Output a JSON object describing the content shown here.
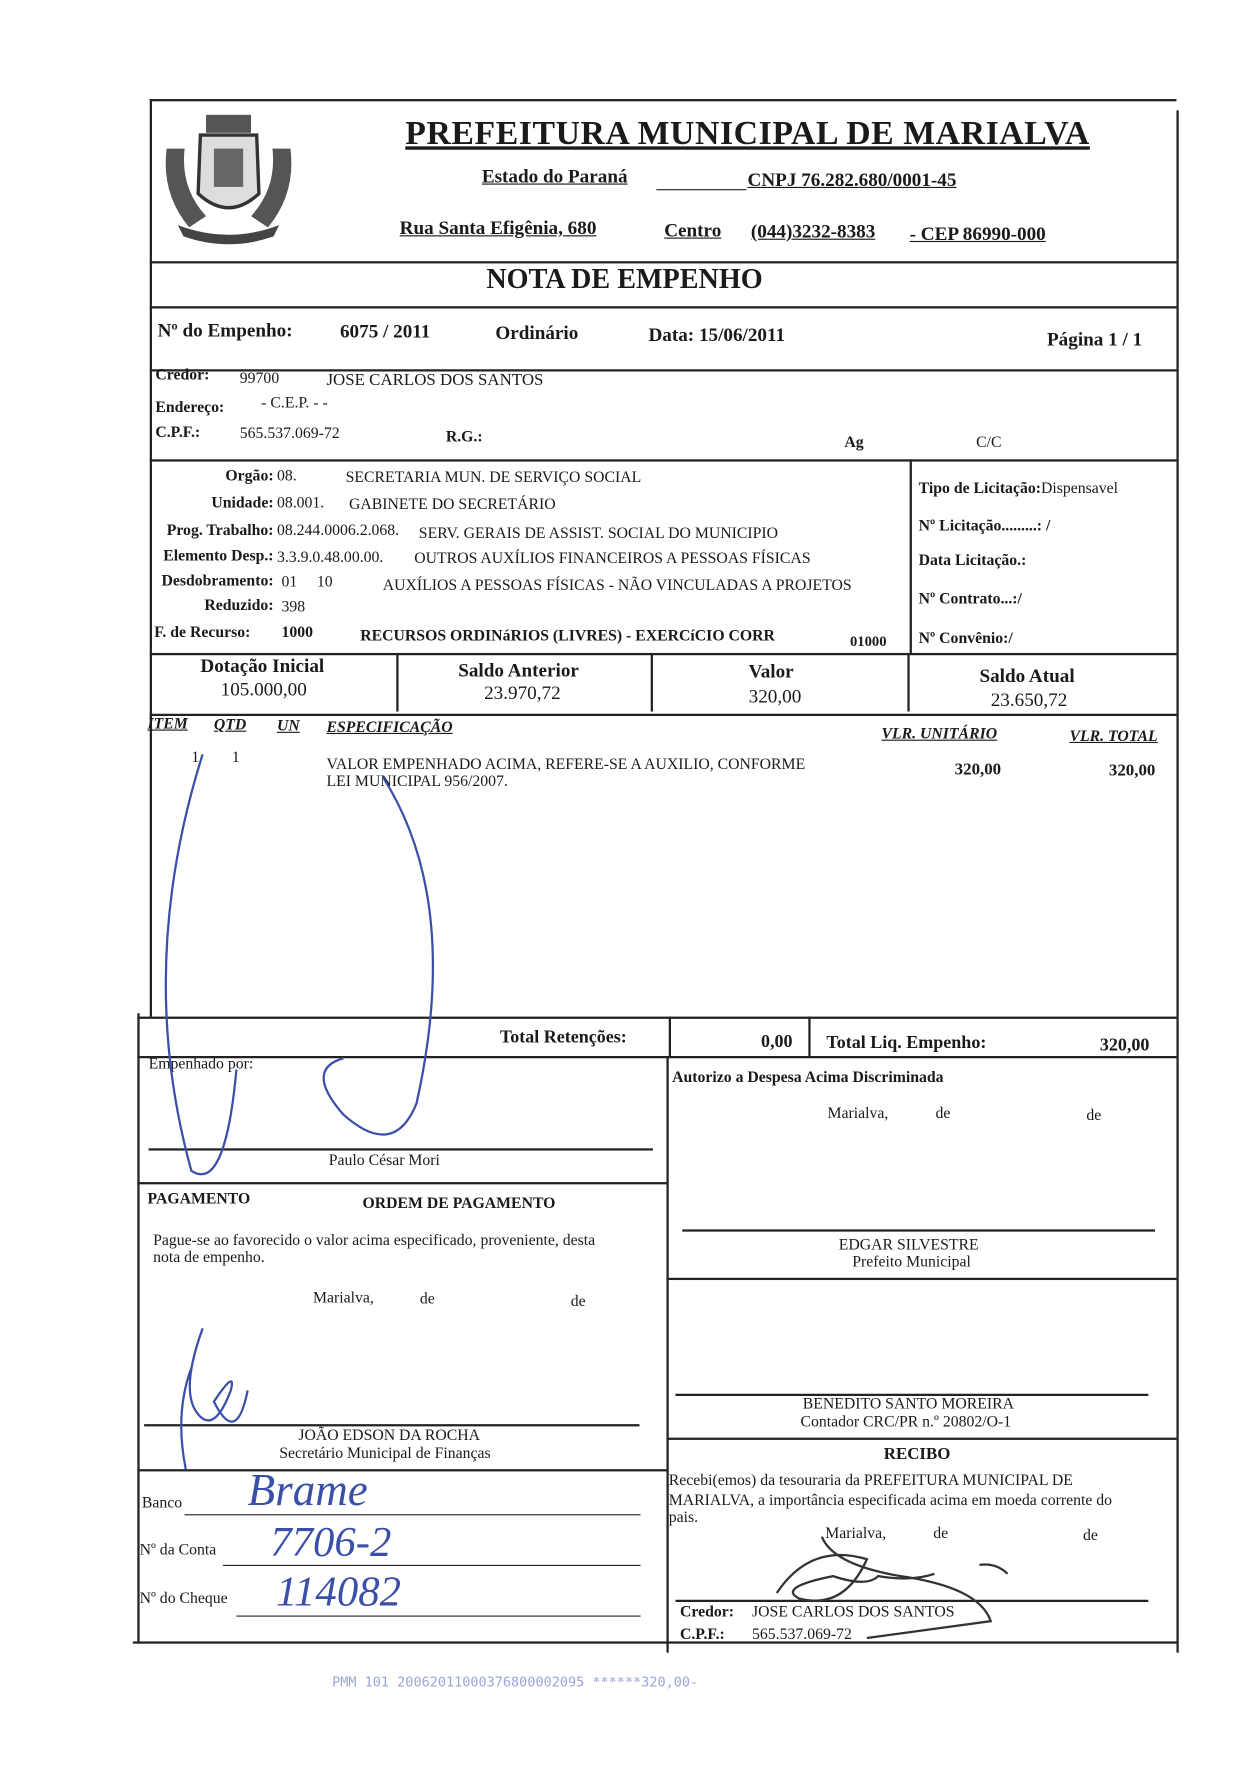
{
  "header": {
    "title": "PREFEITURA MUNICIPAL DE MARIALVA",
    "state": "Estado do Paraná",
    "cnpj": "CNPJ 76.282.680/0001-45",
    "address": "Rua Santa Efigênia, 680",
    "district": "Centro",
    "phone": "(044)3232-8383",
    "cep": "-  CEP 86990-000",
    "coat_of_arms": "MARIALVA"
  },
  "doc_title": "NOTA  DE  EMPENHO",
  "empenho": {
    "label": "Nº do Empenho:",
    "number": "6075 / 2011",
    "type": "Ordinário",
    "date": "Data: 15/06/2011",
    "page": "Página   1 / 1"
  },
  "credor": {
    "label": "Credor:",
    "code": "99700",
    "name": "JOSE CARLOS DOS SANTOS",
    "address_label": "Endereço:",
    "address": "- C.E.P.  -  -",
    "cpf_label": "C.P.F.:",
    "cpf": "565.537.069-72",
    "rg_label": "R.G.:",
    "ag_label": "Ag",
    "cc_label": "C/C"
  },
  "classification": [
    {
      "label": "Orgão:",
      "code": "08.",
      "desc": "SECRETARIA MUN. DE SERVIÇO SOCIAL"
    },
    {
      "label": "Unidade:",
      "code": "08.001.",
      "desc": "GABINETE DO SECRETÁRIO"
    },
    {
      "label": "Prog. Trabalho:",
      "code": "08.244.0006.2.068.",
      "desc": "SERV. GERAIS DE ASSIST. SOCIAL DO MUNICIPIO"
    },
    {
      "label": "Elemento Desp.:",
      "code": "3.3.9.0.48.00.00.",
      "desc": "OUTROS AUXÍLIOS FINANCEIROS A PESSOAS FÍSICAS"
    },
    {
      "label": "Desdobramento:",
      "code": "01     10",
      "desc": "AUXÍLIOS A PESSOAS FÍSICAS - NÃO VINCULADAS A PROJETOS"
    },
    {
      "label": "Reduzido:",
      "code": "398",
      "desc": ""
    },
    {
      "label": "F. de Recurso:",
      "code": "1000",
      "desc": "RECURSOS ORDINáRIOS (LIVRES) - EXERCíCIO CORR",
      "extra": "01000"
    }
  ],
  "licitacao": {
    "tipo_label": "Tipo de Licitação:",
    "tipo": "Dispensavel",
    "numero": "Nº Licitação.........: /",
    "data": "Data Licitação.:",
    "contrato": "Nº Contrato...:/",
    "convenio": "Nº Convênio:/"
  },
  "balances": [
    {
      "label": "Dotação Inicial",
      "value": "105.000,00"
    },
    {
      "label": "Saldo Anterior",
      "value": "23.970,72"
    },
    {
      "label": "Valor",
      "value": "320,00"
    },
    {
      "label": "Saldo Atual",
      "value": "23.650,72"
    }
  ],
  "items_header": {
    "item": "ITEM",
    "qtd": "QTD",
    "un": "UN",
    "spec": "ESPECIFICAÇÃO",
    "unit": "VLR. UNITÁRIO",
    "total": "VLR. TOTAL"
  },
  "items": [
    {
      "item": "1",
      "qtd": "1",
      "spec": "VALOR EMPENHADO ACIMA, REFERE-SE A AUXILIO, CONFORME",
      "spec2": "LEI MUNICIPAL 956/2007.",
      "unit": "320,00",
      "total": "320,00"
    }
  ],
  "totals": {
    "retencoes_label": "Total Retenções:",
    "retencoes": "0,00",
    "liq_label": "Total Liq. Empenho:",
    "liq": "320,00"
  },
  "empenhado": {
    "label": "Empenhado por:",
    "name": "Paulo César Mori"
  },
  "autorizo": {
    "label": "Autorizo a Despesa Acima Discriminada",
    "place": "Marialva,",
    "de1": "de",
    "de2": "de",
    "name": "EDGAR SILVESTRE",
    "role": "Prefeito Municipal"
  },
  "pagamento": {
    "label": "PAGAMENTO",
    "order": "ORDEM DE PAGAMENTO",
    "text1": "Pague-se ao favorecido o valor acima especificado, proveniente, desta",
    "text2": "nota de empenho.",
    "place": "Marialva,",
    "de1": "de",
    "de2": "de",
    "name": "JOÃO EDSON DA ROCHA",
    "role": "Secretário Municipal de Finanças"
  },
  "contador": {
    "name": "BENEDITO SANTO MOREIRA",
    "role": "Contador CRC/PR n.º 20802/O-1"
  },
  "bank": {
    "banco_label": "Banco",
    "banco": "Brame",
    "conta_label": "Nº da Conta",
    "conta": "7706-2",
    "cheque_label": "Nº do Cheque",
    "cheque": "114082"
  },
  "recibo": {
    "title": "RECIBO",
    "text1": "Recebi(emos)  da  tesouraria  da  PREFEITURA  MUNICIPAL  DE",
    "text2": "MARIALVA, a importância especificada acima em moeda corrente do",
    "text3": "pais.",
    "place": "Marialva,",
    "de1": "de",
    "de2": "de",
    "credor_label": "Credor:",
    "credor": "JOSE CARLOS DOS SANTOS",
    "cpf_label": "C.P.F.:",
    "cpf": "565.537.069-72"
  },
  "stamp": "PMM 101 20062011000376800002095 ******320,00-",
  "colors": {
    "ink": "#1a1a1a",
    "pen": "#3a4fa8",
    "stamp": "#9aa6d8"
  }
}
